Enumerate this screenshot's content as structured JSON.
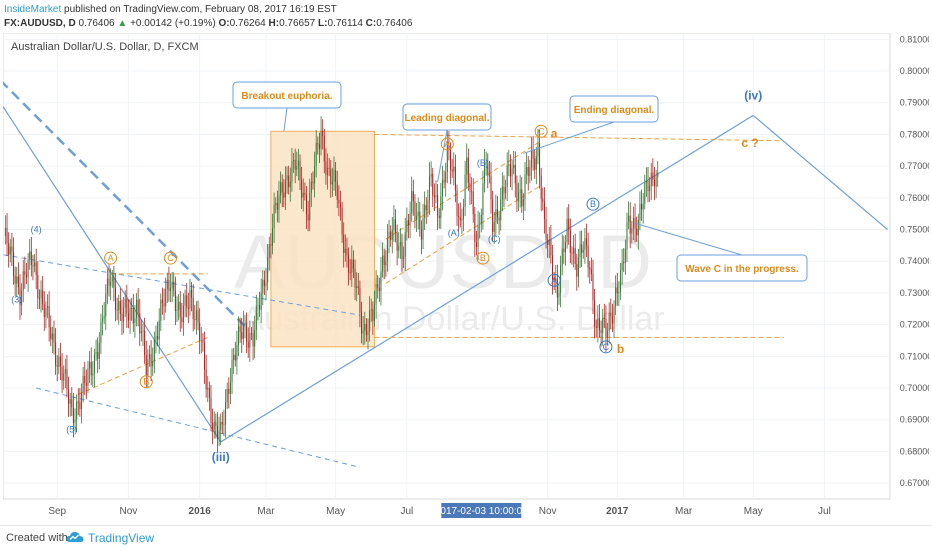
{
  "header": {
    "author": "InsideMarket",
    "published_text": "published on TradingView.com, February 08, 2017 16:19 EST",
    "symbol": "FX:AUDUSD, D",
    "last": "0.76406",
    "change_arrow": "▲",
    "change": "+0.00142 (+0.19%)",
    "o_label": "O:",
    "o_val": "0.76264",
    "h_label": "H:",
    "h_val": "0.76657",
    "l_label": "L:",
    "l_val": "0.76114",
    "c_label": "C:",
    "c_val": "0.76406"
  },
  "footer": {
    "created": "Created with",
    "brand": "TradingView"
  },
  "colors": {
    "up_candle": "#3a7a3a",
    "down_candle": "#b22222",
    "trend_line": "#6c9fdc",
    "orange": "#f0a040",
    "label_orange": "#e08a1a",
    "label_blue": "#3a78c8",
    "highlight_box": "#fbe3c4"
  },
  "chart_data": {
    "type": "candlestick",
    "title": "Australian Dollar/U.S. Dollar, D, FXCM",
    "watermark_symbol": "AUDUSD, D",
    "watermark_name": "Australian Dollar/U.S. Dollar",
    "ylim": [
      0.665,
      0.812
    ],
    "y_ticks": [
      "0.81000",
      "0.80000",
      "0.79000",
      "0.78000",
      "0.77000",
      "0.76000",
      "0.75000",
      "0.74000",
      "0.73000",
      "0.72000",
      "0.71000",
      "0.70000",
      "0.69000",
      "0.68000",
      "0.67000"
    ],
    "y_tick_values": [
      0.81,
      0.8,
      0.79,
      0.78,
      0.77,
      0.76,
      0.75,
      0.74,
      0.73,
      0.72,
      0.71,
      0.7,
      0.69,
      0.68,
      0.67
    ],
    "x_ticks": [
      {
        "label": "Sep",
        "bar": 33
      },
      {
        "label": "Nov",
        "bar": 77
      },
      {
        "label": "2016",
        "bar": 121
      },
      {
        "label": "Mar",
        "bar": 162
      },
      {
        "label": "May",
        "bar": 205
      },
      {
        "label": "Jul",
        "bar": 249
      },
      {
        "label": "Nov",
        "bar": 336
      },
      {
        "label": "2017",
        "bar": 379
      },
      {
        "label": "Mar",
        "bar": 420
      },
      {
        "label": "May",
        "bar": 463
      },
      {
        "label": "Jul",
        "bar": 507
      }
    ],
    "crosshair_label": "2017-02-03 10:00:00",
    "crosshair_bar": 295,
    "bars_visible": 548,
    "anchors": [
      [
        0,
        0.748
      ],
      [
        10,
        0.731
      ],
      [
        18,
        0.741
      ],
      [
        24,
        0.726
      ],
      [
        36,
        0.705
      ],
      [
        42,
        0.692
      ],
      [
        50,
        0.7
      ],
      [
        60,
        0.717
      ],
      [
        66,
        0.737
      ],
      [
        72,
        0.722
      ],
      [
        82,
        0.726
      ],
      [
        88,
        0.706
      ],
      [
        94,
        0.716
      ],
      [
        103,
        0.736
      ],
      [
        109,
        0.72
      ],
      [
        115,
        0.731
      ],
      [
        121,
        0.716
      ],
      [
        130,
        0.687
      ],
      [
        134,
        0.684
      ],
      [
        140,
        0.706
      ],
      [
        148,
        0.719
      ],
      [
        154,
        0.716
      ],
      [
        160,
        0.731
      ],
      [
        166,
        0.752
      ],
      [
        174,
        0.766
      ],
      [
        180,
        0.77
      ],
      [
        188,
        0.757
      ],
      [
        196,
        0.781
      ],
      [
        200,
        0.769
      ],
      [
        206,
        0.761
      ],
      [
        212,
        0.741
      ],
      [
        218,
        0.731
      ],
      [
        222,
        0.719
      ],
      [
        228,
        0.722
      ],
      [
        234,
        0.741
      ],
      [
        240,
        0.749
      ],
      [
        246,
        0.744
      ],
      [
        252,
        0.757
      ],
      [
        258,
        0.752
      ],
      [
        264,
        0.764
      ],
      [
        268,
        0.756
      ],
      [
        274,
        0.773
      ],
      [
        278,
        0.766
      ],
      [
        282,
        0.752
      ],
      [
        286,
        0.769
      ],
      [
        292,
        0.746
      ],
      [
        298,
        0.772
      ],
      [
        302,
        0.752
      ],
      [
        308,
        0.761
      ],
      [
        314,
        0.77
      ],
      [
        320,
        0.759
      ],
      [
        326,
        0.772
      ],
      [
        330,
        0.776
      ],
      [
        334,
        0.749
      ],
      [
        338,
        0.741
      ],
      [
        342,
        0.731
      ],
      [
        348,
        0.749
      ],
      [
        354,
        0.74
      ],
      [
        358,
        0.744
      ],
      [
        362,
        0.739
      ],
      [
        366,
        0.72
      ],
      [
        372,
        0.717
      ],
      [
        378,
        0.73
      ],
      [
        382,
        0.735
      ],
      [
        386,
        0.754
      ],
      [
        392,
        0.751
      ],
      [
        398,
        0.766
      ],
      [
        402,
        0.768
      ],
      [
        404,
        0.764
      ]
    ],
    "annotations": [
      {
        "text": "Breakout euphoria.",
        "style": "orange"
      },
      {
        "text": "Leading diagonal.",
        "style": "orange"
      },
      {
        "text": "Ending diagonal.",
        "style": "orange"
      },
      {
        "text": "Wave C in the progress.",
        "style": "orange"
      }
    ],
    "wave_labels": {
      "iv": "(iv)",
      "iii": "(iii)",
      "c_q": "c ?",
      "a": "a",
      "b": "b",
      "n3": "(3)",
      "n4": "(4)",
      "n5": "(5)",
      "A": "A",
      "B": "B",
      "C": "C",
      "pA": "(A)",
      "pB": "(B)",
      "pC": "(C)"
    }
  }
}
